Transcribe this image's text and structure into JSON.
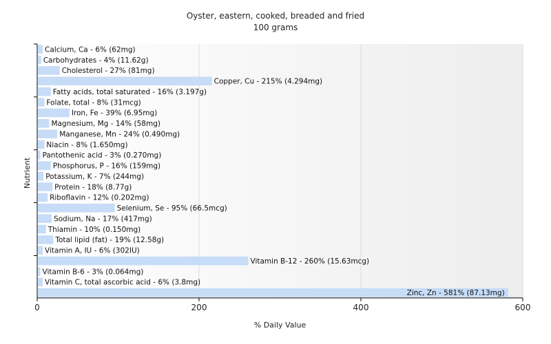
{
  "chart_data": {
    "type": "bar",
    "orientation": "horizontal",
    "title": "Oyster, eastern, cooked, breaded and fried",
    "subtitle": "100 grams",
    "xlabel": "% Daily Value",
    "ylabel": "Nutrient",
    "xlim": [
      0,
      600
    ],
    "xticks": [
      0,
      200,
      400,
      600
    ],
    "grid": true,
    "bar_color": "#c6dcf7",
    "categories": [
      "Calcium, Ca",
      "Carbohydrates",
      "Cholesterol",
      "Copper, Cu",
      "Fatty acids, total saturated",
      "Folate, total",
      "Iron, Fe",
      "Magnesium, Mg",
      "Manganese, Mn",
      "Niacin",
      "Pantothenic acid",
      "Phosphorus, P",
      "Potassium, K",
      "Protein",
      "Riboflavin",
      "Selenium, Se",
      "Sodium, Na",
      "Thiamin",
      "Total lipid (fat)",
      "Vitamin A, IU",
      "Vitamin B-12",
      "Vitamin B-6",
      "Vitamin C, total ascorbic acid",
      "Zinc, Zn"
    ],
    "values": [
      6,
      4,
      27,
      215,
      16,
      8,
      39,
      14,
      24,
      8,
      3,
      16,
      7,
      18,
      12,
      95,
      17,
      10,
      19,
      6,
      260,
      3,
      6,
      581
    ],
    "labels": [
      "Calcium, Ca - 6% (62mg)",
      "Carbohydrates - 4% (11.62g)",
      "Cholesterol - 27% (81mg)",
      "Copper, Cu - 215% (4.294mg)",
      "Fatty acids, total saturated - 16% (3.197g)",
      "Folate, total - 8% (31mcg)",
      "Iron, Fe - 39% (6.95mg)",
      "Magnesium, Mg - 14% (58mg)",
      "Manganese, Mn - 24% (0.490mg)",
      "Niacin - 8% (1.650mg)",
      "Pantothenic acid - 3% (0.270mg)",
      "Phosphorus, P - 16% (159mg)",
      "Potassium, K - 7% (244mg)",
      "Protein - 18% (8.77g)",
      "Riboflavin - 12% (0.202mg)",
      "Selenium, Se - 95% (66.5mcg)",
      "Sodium, Na - 17% (417mg)",
      "Thiamin - 10% (0.150mg)",
      "Total lipid (fat) - 19% (12.58g)",
      "Vitamin A, IU - 6% (302IU)",
      "Vitamin B-12 - 260% (15.63mcg)",
      "Vitamin B-6 - 3% (0.064mg)",
      "Vitamin C, total ascorbic acid - 6% (3.8mg)",
      "Zinc, Zn - 581% (87.13mg)"
    ]
  }
}
